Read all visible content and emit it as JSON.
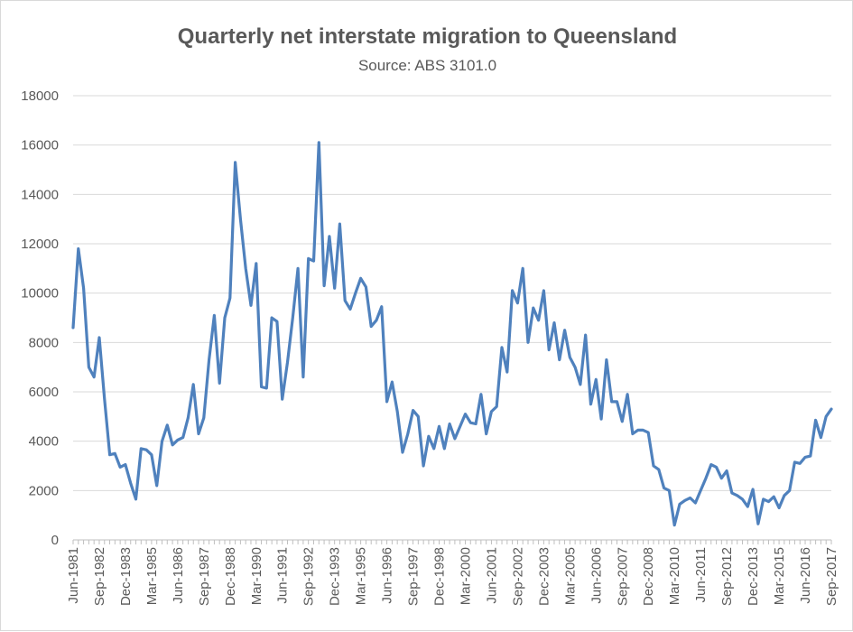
{
  "chart_data": {
    "type": "line",
    "title": "Quarterly net interstate migration to Queensland",
    "subtitle": "Source: ABS 3101.0",
    "xlabel": "",
    "ylabel": "",
    "ylim": [
      0,
      18000
    ],
    "y_ticks": [
      0,
      2000,
      4000,
      6000,
      8000,
      10000,
      12000,
      14000,
      16000,
      18000
    ],
    "x_start": "Jun-1981",
    "x_end": "Sep-2017",
    "frequency": "quarterly",
    "x_tick_labels": [
      "Jun-1981",
      "Sep-1982",
      "Dec-1983",
      "Mar-1985",
      "Jun-1986",
      "Sep-1987",
      "Dec-1988",
      "Mar-1990",
      "Jun-1991",
      "Sep-1992",
      "Dec-1993",
      "Mar-1995",
      "Jun-1996",
      "Sep-1997",
      "Dec-1998",
      "Mar-2000",
      "Jun-2001",
      "Sep-2002",
      "Dec-2003",
      "Mar-2005",
      "Jun-2006",
      "Sep-2007",
      "Dec-2008",
      "Mar-2010",
      "Jun-2011",
      "Sep-2012",
      "Dec-2013",
      "Mar-2015",
      "Jun-2016",
      "Sep-2017"
    ],
    "grid": "horizontal",
    "legend": "none",
    "line_color": "#4f81bd",
    "series": [
      {
        "values": [
          8600,
          11800,
          10200,
          7000,
          6600,
          8200,
          5700,
          3450,
          3500,
          2950,
          3050,
          2300,
          1650,
          3700,
          3650,
          3450,
          2200,
          4000,
          4650,
          3850,
          4050,
          4150,
          4950,
          6300,
          4300,
          4950,
          7300,
          9100,
          6350,
          9000,
          9800,
          15300,
          13000,
          11000,
          9500,
          11200,
          6200,
          6150,
          9000,
          8850,
          5700,
          7200,
          9000,
          11000,
          6600,
          11400,
          11300,
          16100,
          10300,
          12300,
          10200,
          12800,
          9700,
          9350,
          10000,
          10600,
          10250,
          8650,
          8900,
          9450,
          5600,
          6400,
          5200,
          3550,
          4300,
          5250,
          5000,
          3000,
          4200,
          3700,
          4600,
          3700,
          4700,
          4100,
          4600,
          5100,
          4750,
          4700,
          5900,
          4300,
          5200,
          5400,
          7800,
          6800,
          10100,
          9600,
          11000,
          8000,
          9400,
          8900,
          10100,
          7700,
          8800,
          7300,
          8500,
          7400,
          7000,
          6300,
          8300,
          5500,
          6500,
          4900,
          7300,
          5600,
          5600,
          4800,
          5900,
          4300,
          4450,
          4450,
          4350,
          3000,
          2850,
          2100,
          2000,
          600,
          1450,
          1600,
          1700,
          1500,
          2000,
          2500,
          3050,
          2950,
          2500,
          2800,
          1900,
          1800,
          1650,
          1350,
          2050,
          650,
          1650,
          1550,
          1750,
          1300,
          1800,
          2000,
          3150,
          3100,
          3350,
          3400,
          4850,
          4150,
          5000,
          5300
        ]
      }
    ]
  }
}
